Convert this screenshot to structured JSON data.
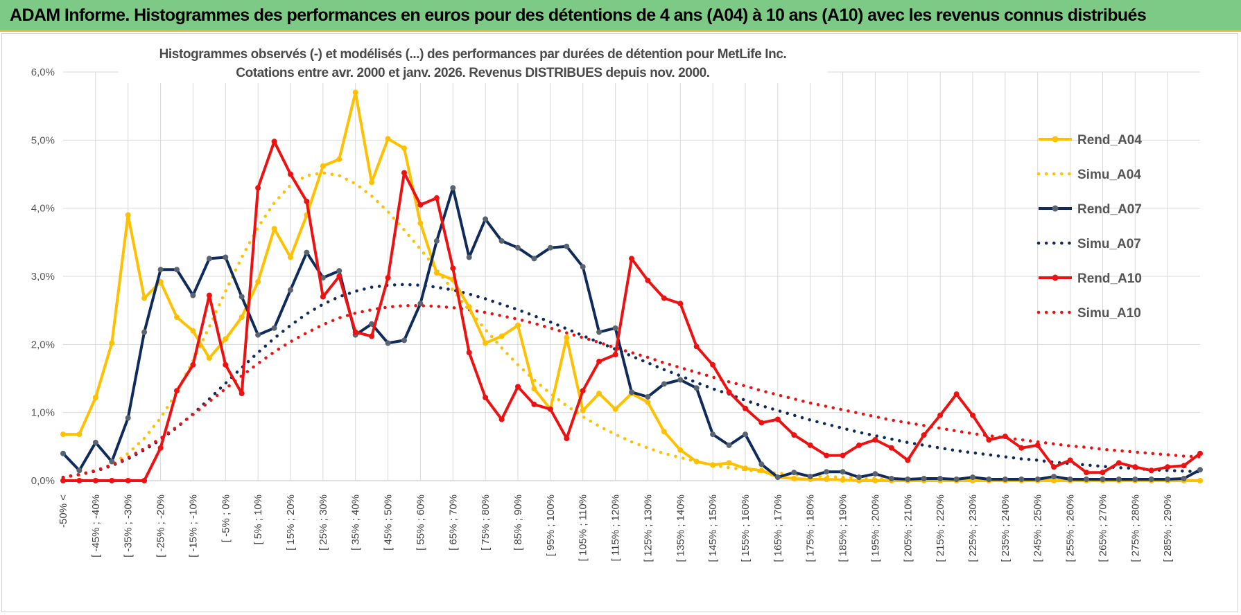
{
  "header": {
    "title": "ADAM Informe. Histogrammes des performances en euros pour des détentions de 4 ans (A04) à 10 ans (A10) avec les revenus connus distribués"
  },
  "colors": {
    "header_bg": "#7dc986",
    "A04": "#ffc000",
    "A07": "#0f2b5c",
    "A07_marker": "#5a6470",
    "A10": "#ee1111",
    "grid": "#d9d9d9"
  },
  "chart_data": {
    "type": "line",
    "title_line1": "Histogrammes observés (-) et modélisés (...) des performances par durées de détention pour MetLife Inc.",
    "title_line2": "Cotations entre avr. 2000 et janv. 2026. Revenus DISTRIBUES depuis nov. 2000.",
    "ylim": [
      0,
      6
    ],
    "y_ticks": [
      "0,0%",
      "1,0%",
      "2,0%",
      "3,0%",
      "4,0%",
      "5,0%",
      "6,0%"
    ],
    "x_labels": [
      "-50% <",
      "[ -45% ; -40%",
      "[ -35% ; -30%",
      "[ -25% ; -20%",
      "[ -15% ; -10%",
      "[ -5% ; 0%",
      "[ 5% ; 10%",
      "[ 15% ; 20%",
      "[ 25% ; 30%",
      "[ 35% ; 40%",
      "[ 45% ; 50%",
      "[ 55% ; 60%",
      "[ 65% ; 70%",
      "[ 75% ; 80%",
      "[ 85% ; 90%",
      "[ 95% ; 100%",
      "[ 105% ; 110%",
      "[ 115% ; 120%",
      "[ 125% ; 130%",
      "[ 135% ; 140%",
      "[ 145% ; 150%",
      "[ 155% ; 160%",
      "[ 165% ; 170%",
      "[ 175% ; 180%",
      "[ 185% ; 190%",
      "[ 195% ; 200%",
      "[ 205% ; 210%",
      "[ 215% ; 220%",
      "[ 225% ; 230%",
      "[ 235% ; 240%",
      "[ 245% ; 250%",
      "[ 255% ; 260%",
      "[ 265% ; 270%",
      "[ 275% ; 280%",
      "[ 285% ; 290%"
    ],
    "series": [
      {
        "name": "Rend_A04",
        "style": "solid",
        "color": "#ffc000",
        "values": [
          0.68,
          0.68,
          1.22,
          2.02,
          3.9,
          2.68,
          2.92,
          2.4,
          2.2,
          1.8,
          2.08,
          2.4,
          2.92,
          3.7,
          3.28,
          3.9,
          4.62,
          4.72,
          5.7,
          4.38,
          5.02,
          4.88,
          3.78,
          3.05,
          2.95,
          2.55,
          2.02,
          2.12,
          2.28,
          1.35,
          1.05,
          2.1,
          1.03,
          1.28,
          1.05,
          1.28,
          1.15,
          0.72,
          0.45,
          0.28,
          0.23,
          0.26,
          0.18,
          0.15,
          0.05,
          0.03,
          0.02,
          0.02,
          0.01,
          0.0,
          0.0,
          0.0,
          0.0,
          0.0,
          0.0,
          0.0,
          0.0,
          0.0,
          0.0,
          0.0,
          0.0,
          0.0,
          0.0,
          0.0,
          0.0,
          0.0,
          0.0,
          0.0,
          0.0,
          0.0,
          0.0
        ]
      },
      {
        "name": "Simu_A04",
        "style": "dotted",
        "color": "#ffc000",
        "values": [
          0.05,
          0.08,
          0.14,
          0.24,
          0.4,
          0.62,
          0.92,
          1.3,
          1.76,
          2.26,
          2.78,
          3.28,
          3.72,
          4.08,
          4.34,
          4.48,
          4.52,
          4.48,
          4.36,
          4.18,
          3.95,
          3.68,
          3.4,
          3.1,
          2.8,
          2.5,
          2.22,
          1.95,
          1.7,
          1.48,
          1.28,
          1.1,
          0.94,
          0.8,
          0.68,
          0.57,
          0.48,
          0.4,
          0.34,
          0.28,
          0.23,
          0.19,
          0.16,
          0.13,
          0.11,
          0.09,
          0.07,
          0.06,
          0.05,
          0.04,
          0.03,
          0.03,
          0.02,
          0.02,
          0.02,
          0.01,
          0.01,
          0.01,
          0.01,
          0.01,
          0.01,
          0.0,
          0.0,
          0.0,
          0.0,
          0.0,
          0.0,
          0.0,
          0.0,
          0.0,
          0.0
        ]
      },
      {
        "name": "Rend_A07",
        "style": "solid",
        "color": "#0f2b5c",
        "values": [
          0.4,
          0.15,
          0.56,
          0.28,
          0.92,
          2.18,
          3.1,
          3.1,
          2.72,
          3.26,
          3.28,
          2.7,
          2.14,
          2.24,
          2.8,
          3.35,
          2.98,
          3.08,
          2.14,
          2.3,
          2.02,
          2.06,
          2.6,
          3.52,
          4.3,
          3.28,
          3.84,
          3.52,
          3.42,
          3.26,
          3.42,
          3.44,
          3.14,
          2.18,
          2.24,
          1.3,
          1.23,
          1.42,
          1.48,
          1.36,
          0.68,
          0.52,
          0.68,
          0.24,
          0.05,
          0.12,
          0.06,
          0.13,
          0.13,
          0.05,
          0.1,
          0.03,
          0.02,
          0.03,
          0.03,
          0.02,
          0.05,
          0.02,
          0.02,
          0.02,
          0.02,
          0.06,
          0.02,
          0.02,
          0.02,
          0.02,
          0.02,
          0.02,
          0.02,
          0.03,
          0.16
        ]
      },
      {
        "name": "Simu_A07",
        "style": "dotted",
        "color": "#0f2b5c",
        "values": [
          0.05,
          0.09,
          0.14,
          0.22,
          0.32,
          0.45,
          0.6,
          0.78,
          0.98,
          1.2,
          1.43,
          1.66,
          1.88,
          2.09,
          2.28,
          2.45,
          2.59,
          2.7,
          2.78,
          2.84,
          2.87,
          2.88,
          2.87,
          2.84,
          2.8,
          2.74,
          2.67,
          2.59,
          2.51,
          2.42,
          2.33,
          2.23,
          2.13,
          2.03,
          1.93,
          1.83,
          1.73,
          1.63,
          1.54,
          1.44,
          1.35,
          1.27,
          1.18,
          1.1,
          1.03,
          0.96,
          0.89,
          0.83,
          0.77,
          0.71,
          0.66,
          0.61,
          0.56,
          0.52,
          0.48,
          0.44,
          0.41,
          0.38,
          0.35,
          0.32,
          0.3,
          0.27,
          0.25,
          0.23,
          0.21,
          0.19,
          0.18,
          0.16,
          0.15,
          0.14,
          0.13
        ]
      },
      {
        "name": "Rend_A10",
        "style": "solid",
        "color": "#ee1111",
        "values": [
          0.0,
          0.0,
          0.0,
          0.0,
          0.0,
          0.0,
          0.48,
          1.32,
          1.7,
          2.72,
          1.7,
          1.28,
          4.3,
          4.98,
          4.5,
          4.1,
          2.7,
          3.0,
          2.18,
          2.12,
          2.98,
          4.52,
          4.05,
          4.15,
          3.12,
          1.88,
          1.22,
          0.9,
          1.38,
          1.12,
          1.05,
          0.62,
          1.32,
          1.75,
          1.85,
          3.26,
          2.94,
          2.68,
          2.6,
          1.97,
          1.7,
          1.3,
          1.06,
          0.85,
          0.9,
          0.67,
          0.52,
          0.37,
          0.37,
          0.52,
          0.6,
          0.48,
          0.3,
          0.67,
          0.96,
          1.27,
          0.96,
          0.6,
          0.65,
          0.48,
          0.52,
          0.2,
          0.3,
          0.12,
          0.12,
          0.26,
          0.2,
          0.15,
          0.2,
          0.22,
          0.4
        ]
      },
      {
        "name": "Simu_A10",
        "style": "dotted",
        "color": "#ee1111",
        "values": [
          0.05,
          0.09,
          0.15,
          0.23,
          0.34,
          0.47,
          0.62,
          0.79,
          0.97,
          1.16,
          1.35,
          1.54,
          1.72,
          1.89,
          2.04,
          2.17,
          2.29,
          2.39,
          2.46,
          2.51,
          2.55,
          2.57,
          2.57,
          2.56,
          2.54,
          2.51,
          2.47,
          2.42,
          2.37,
          2.31,
          2.24,
          2.17,
          2.1,
          2.03,
          1.95,
          1.88,
          1.81,
          1.73,
          1.66,
          1.59,
          1.52,
          1.45,
          1.39,
          1.32,
          1.26,
          1.2,
          1.14,
          1.09,
          1.04,
          0.99,
          0.94,
          0.89,
          0.85,
          0.81,
          0.77,
          0.73,
          0.69,
          0.66,
          0.63,
          0.6,
          0.57,
          0.54,
          0.51,
          0.49,
          0.46,
          0.44,
          0.42,
          0.4,
          0.38,
          0.36,
          0.35
        ]
      }
    ],
    "legend": {
      "position": "right",
      "entries": [
        "Rend_A04",
        "Simu_A04",
        "Rend_A07",
        "Simu_A07",
        "Rend_A10",
        "Simu_A10"
      ]
    }
  }
}
